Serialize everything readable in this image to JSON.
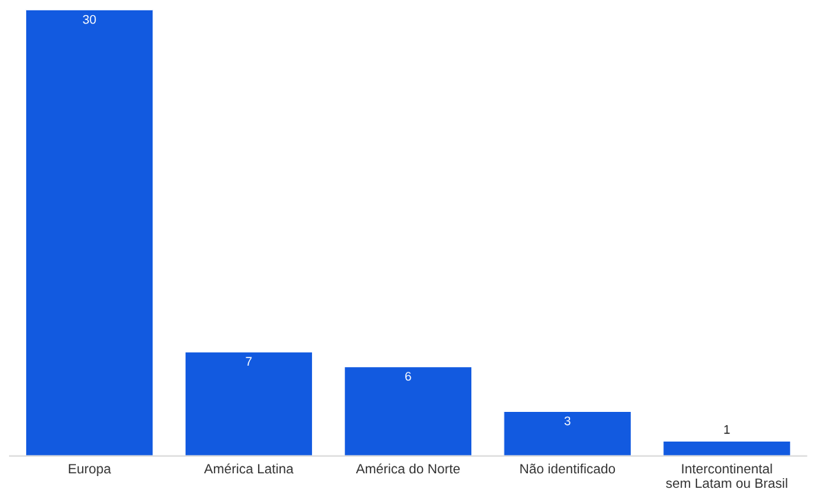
{
  "chart_data": {
    "type": "bar",
    "categories": [
      "Europa",
      "América Latina",
      "América do Norte",
      "Não identificado",
      "Intercontinental\nsem Latam ou Brasil"
    ],
    "values": [
      30,
      7,
      6,
      3,
      1
    ],
    "color": "#125ae0",
    "data_labels": true,
    "grid": false,
    "legend": false
  }
}
